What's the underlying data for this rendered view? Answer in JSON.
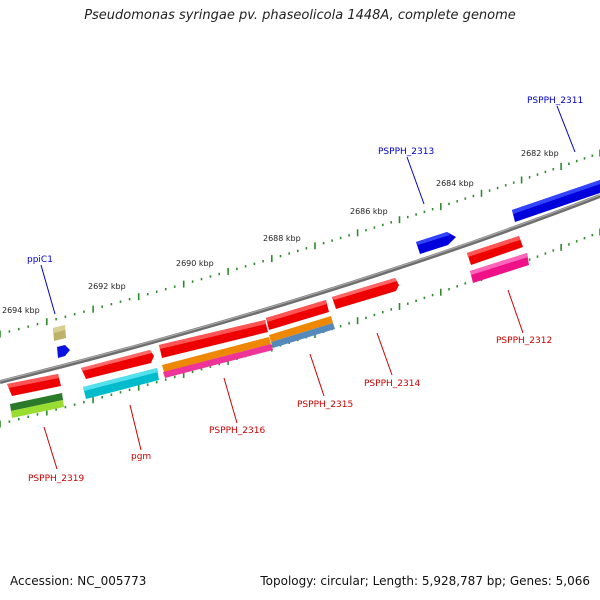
{
  "title": "Pseudomonas syringae pv. phaseolicola 1448A, complete genome",
  "accession": "Accession: NC_005773",
  "topology_info": "Topology: circular; Length: 5,928,787 bp; Genes: 5,066",
  "colors": {
    "backbone": "#808080",
    "forward_label": "#0000cc",
    "reverse_label": "#cc0000",
    "tick": "#2e8b2e"
  },
  "ticks": [
    {
      "label": "2694 kbp"
    },
    {
      "label": "2692 kbp"
    },
    {
      "label": "2690 kbp"
    },
    {
      "label": "2688 kbp"
    },
    {
      "label": "2686 kbp"
    },
    {
      "label": "2684 kbp"
    },
    {
      "label": "2682 kbp"
    }
  ],
  "forward_genes": [
    {
      "name": "ppiC1"
    },
    {
      "name": "PSPPH_2313"
    },
    {
      "name": "PSPPH_2311"
    }
  ],
  "reverse_genes": [
    {
      "name": "PSPPH_2319"
    },
    {
      "name": "pgm"
    },
    {
      "name": "PSPPH_2316"
    },
    {
      "name": "PSPPH_2315"
    },
    {
      "name": "PSPPH_2314"
    },
    {
      "name": "PSPPH_2312"
    }
  ]
}
